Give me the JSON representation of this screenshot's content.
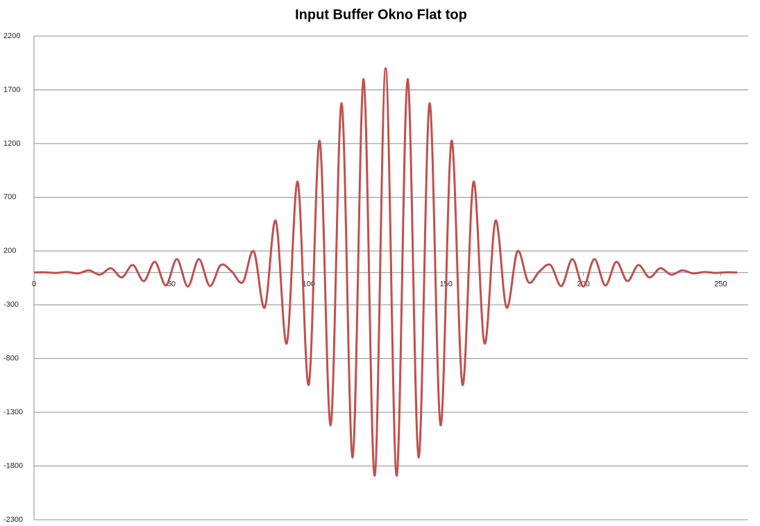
{
  "chart_data": {
    "type": "line",
    "title": "Input Buffer Okno Flat top",
    "x": [
      0,
      4,
      8,
      12,
      16,
      20,
      24,
      28,
      32,
      36,
      40,
      44,
      48,
      52,
      56,
      60,
      64,
      68,
      72,
      76,
      80,
      84,
      88,
      92,
      96,
      100,
      104,
      108,
      112,
      116,
      120,
      124,
      128,
      132,
      136,
      140,
      144,
      148,
      152,
      156,
      160,
      164,
      168,
      172,
      176,
      180,
      184,
      188,
      192,
      196,
      200,
      204,
      208,
      212,
      216,
      220,
      224,
      228,
      232,
      236,
      240,
      244,
      248,
      252,
      256
    ],
    "values": [
      0,
      2,
      -3,
      5,
      -8,
      20,
      -20,
      40,
      -45,
      70,
      -80,
      100,
      -120,
      125,
      -130,
      125,
      -125,
      70,
      10,
      -90,
      198,
      -325,
      482,
      -660,
      844,
      -1045,
      1225,
      -1420,
      1575,
      -1720,
      1800,
      -1890,
      1900,
      -1890,
      1800,
      -1720,
      1575,
      -1420,
      1225,
      -1045,
      844,
      -660,
      482,
      -325,
      198,
      -90,
      10,
      70,
      -125,
      125,
      -130,
      125,
      -120,
      100,
      -80,
      70,
      -45,
      40,
      -20,
      20,
      -8,
      5,
      -3,
      2,
      0
    ],
    "color": "#c0504d",
    "xlim": [
      0,
      260
    ],
    "xticks": [
      0,
      50,
      100,
      150,
      200,
      250
    ],
    "ylim": [
      -2300,
      2200
    ],
    "yticks": [
      -2300,
      -1800,
      -1300,
      -800,
      -300,
      200,
      700,
      1200,
      1700,
      2200
    ],
    "grid": true
  }
}
